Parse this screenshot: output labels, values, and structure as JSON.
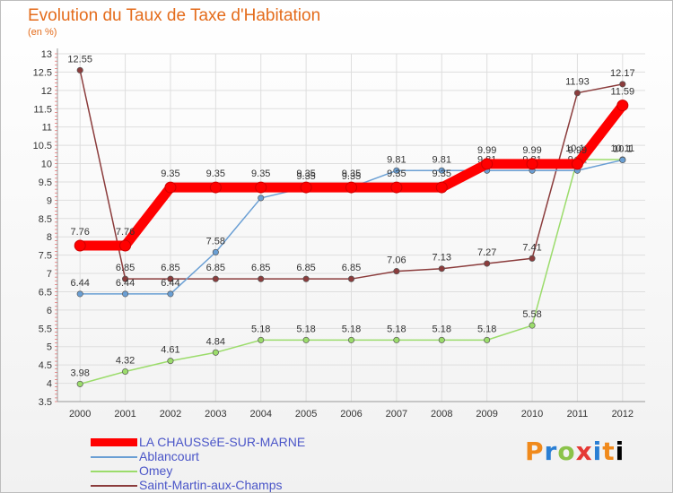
{
  "chart_data": {
    "type": "line",
    "title": "Evolution du Taux de Taxe d'Habitation",
    "subtitle": "(en %)",
    "categories": [
      "2000",
      "2001",
      "2002",
      "2003",
      "2004",
      "2005",
      "2006",
      "2007",
      "2008",
      "2009",
      "2010",
      "2011",
      "2012"
    ],
    "ylim": [
      3.5,
      13
    ],
    "yticks": [
      "3.5",
      "4",
      "4.5",
      "5",
      "5.5",
      "6",
      "6.5",
      "7",
      "7.5",
      "8",
      "8.5",
      "9",
      "9.5",
      "10",
      "10.5",
      "11",
      "11.5",
      "12",
      "12.5",
      "13"
    ],
    "series": [
      {
        "name": "LA CHAUSSéE-SUR-MARNE",
        "color": "#ff0000",
        "labels": [
          "7.76",
          "7.76",
          "9.35",
          "9.35",
          "9.35",
          "9.35",
          "9.35",
          "9.35",
          "9.35",
          "9.99",
          "9.99",
          "9.99",
          "11.59"
        ],
        "values": [
          7.76,
          7.76,
          9.35,
          9.35,
          9.35,
          9.35,
          9.35,
          9.35,
          9.35,
          9.99,
          9.99,
          9.99,
          11.59
        ]
      },
      {
        "name": "Ablancourt",
        "color": "#6a9fd4",
        "labels": [
          "6.44",
          "6.44",
          "6.44",
          "7.58",
          "9.06",
          "9.35",
          "9.35",
          "9.81",
          "9.81",
          "9.81",
          "9.81",
          "9.81",
          "10.1"
        ],
        "values": [
          6.44,
          6.44,
          6.44,
          7.58,
          9.06,
          9.35,
          9.35,
          9.81,
          9.81,
          9.81,
          9.81,
          9.81,
          10.1
        ]
      },
      {
        "name": "Omey",
        "color": "#9bdc6b",
        "labels": [
          "3.98",
          "4.32",
          "4.61",
          "4.84",
          "5.18",
          "5.18",
          "5.18",
          "5.18",
          "5.18",
          "5.18",
          "5.58",
          "10.11",
          "10.11"
        ],
        "values": [
          3.98,
          4.32,
          4.61,
          4.84,
          5.18,
          5.18,
          5.18,
          5.18,
          5.18,
          5.18,
          5.58,
          10.11,
          10.11
        ]
      },
      {
        "name": "Saint-Martin-aux-Champs",
        "color": "#8b3c3c",
        "labels": [
          "12.55",
          "6.85",
          "6.85",
          "6.85",
          "6.85",
          "6.85",
          "6.85",
          "7.06",
          "7.13",
          "7.27",
          "7.41",
          "11.93",
          "12.17"
        ],
        "values": [
          12.55,
          6.85,
          6.85,
          6.85,
          6.85,
          6.85,
          6.85,
          7.06,
          7.13,
          7.27,
          7.41,
          11.93,
          12.17
        ]
      }
    ]
  },
  "brand": [
    "P",
    "r",
    "o",
    "x",
    "i",
    "t",
    "i"
  ]
}
